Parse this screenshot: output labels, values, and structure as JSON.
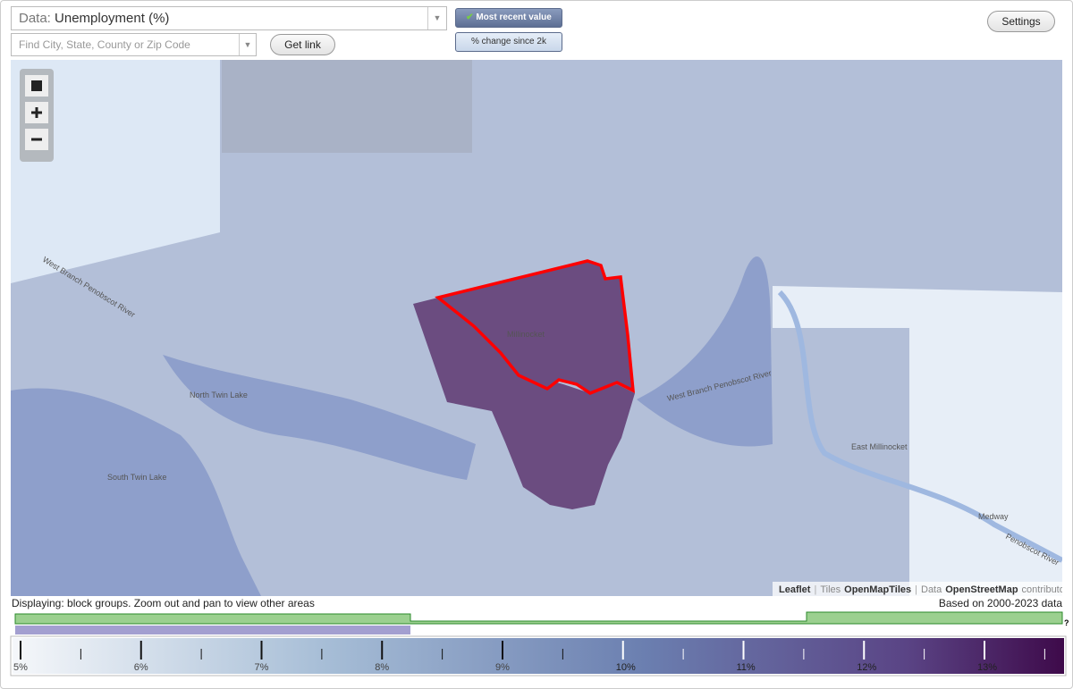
{
  "controls": {
    "data_label": "Data:",
    "data_value": "Unemployment (%)",
    "search_placeholder": "Find City, State, County or Zip Code",
    "get_link": "Get link",
    "most_recent": "Most recent value",
    "change_since": "% change since 2k",
    "settings": "Settings"
  },
  "map": {
    "labels": [
      "West Branch Penobscot River",
      "North Twin Lake",
      "South Twin Lake",
      "Millinocket",
      "West Branch Penobscot River",
      "East Millinocket",
      "Medway",
      "Penobscot River"
    ],
    "attribution": [
      "Leaflet",
      "|",
      "Tiles",
      "OpenMapTiles",
      "|",
      "Data",
      "OpenStreetMap",
      "contributors"
    ]
  },
  "footer": {
    "displaying": "Displaying: block groups. Zoom out and pan to view other areas",
    "based_on": "Based on 2000-2023 data",
    "help": "?"
  },
  "legend": {
    "ticks": [
      {
        "value": 5,
        "label": "5%"
      },
      {
        "value": 6,
        "label": "6%"
      },
      {
        "value": 7,
        "label": "7%"
      },
      {
        "value": 8,
        "label": "8%"
      },
      {
        "value": 9,
        "label": "9%"
      },
      {
        "value": 10,
        "label": "10%"
      },
      {
        "value": 11,
        "label": "11%"
      },
      {
        "value": 12,
        "label": "12%"
      },
      {
        "value": 13,
        "label": "13%"
      }
    ]
  }
}
